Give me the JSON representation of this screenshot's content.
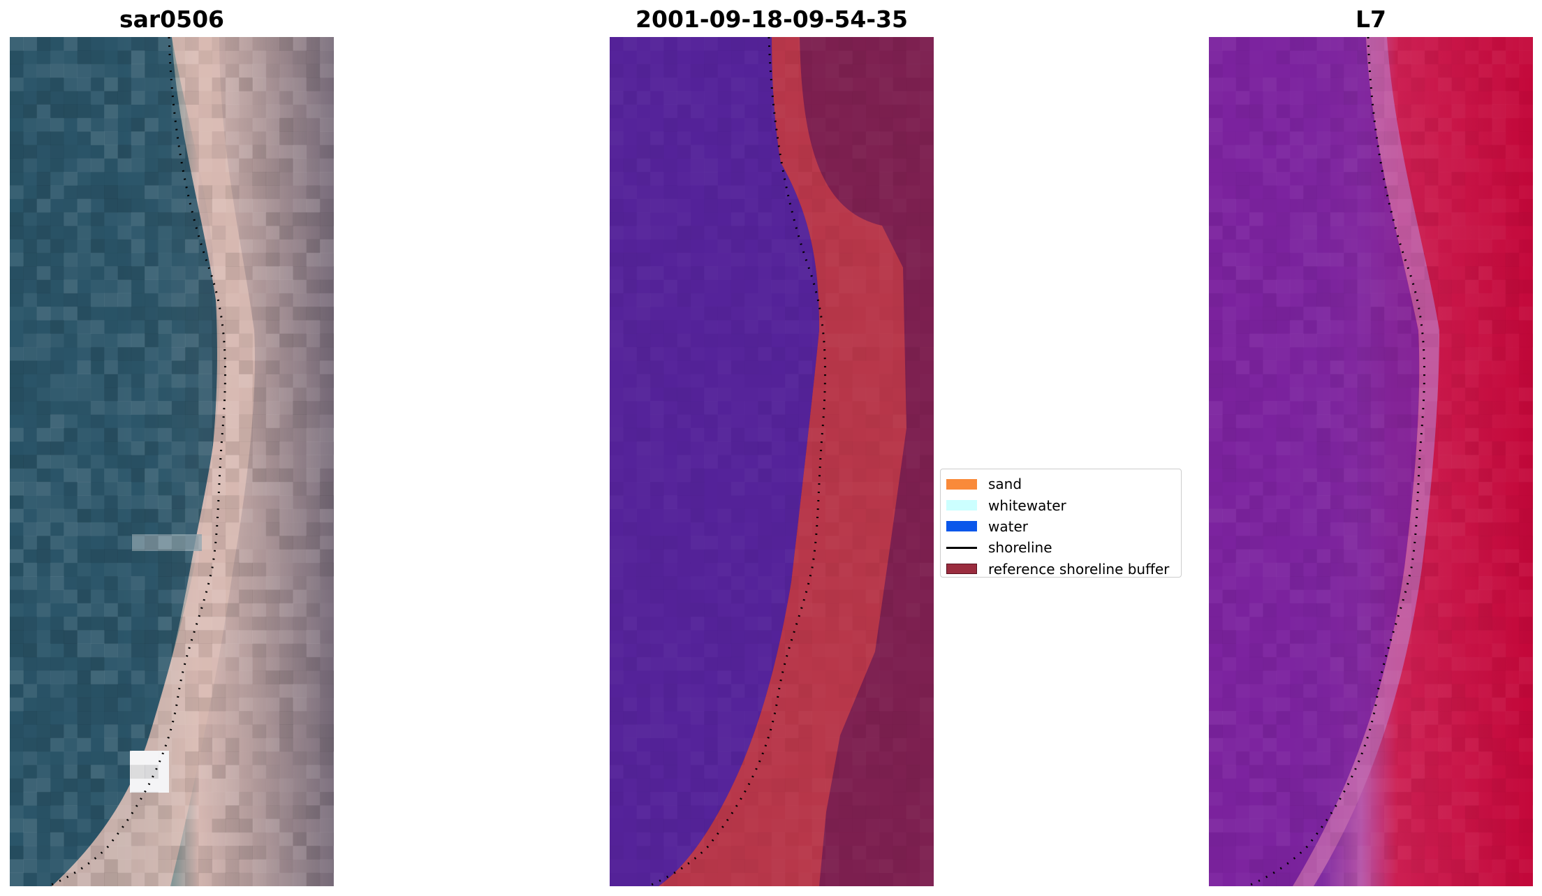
{
  "panels": [
    {
      "title": "sar0506"
    },
    {
      "title": "2001-09-18-09-54-35"
    },
    {
      "title": "L7"
    }
  ],
  "legend": [
    {
      "label": "sand",
      "color": "#f98a3a",
      "kind": "patch"
    },
    {
      "label": "whitewater",
      "color": "#ccffff",
      "kind": "patch"
    },
    {
      "label": "water",
      "color": "#0b57ea",
      "kind": "patch"
    },
    {
      "label": "shoreline",
      "color": "#000000",
      "kind": "line"
    },
    {
      "label": "reference shoreline buffer",
      "color": "#9a2c3e",
      "kind": "patch"
    }
  ],
  "colors": {
    "water_rgb": "#2e566a",
    "land_rgb": "#d8b8b0",
    "water_class": "#55239a",
    "buffer_class": "#b8374a",
    "land_class": "#7d2050",
    "water_index": "#7b1e9e",
    "land_index": "#c50c3a"
  }
}
